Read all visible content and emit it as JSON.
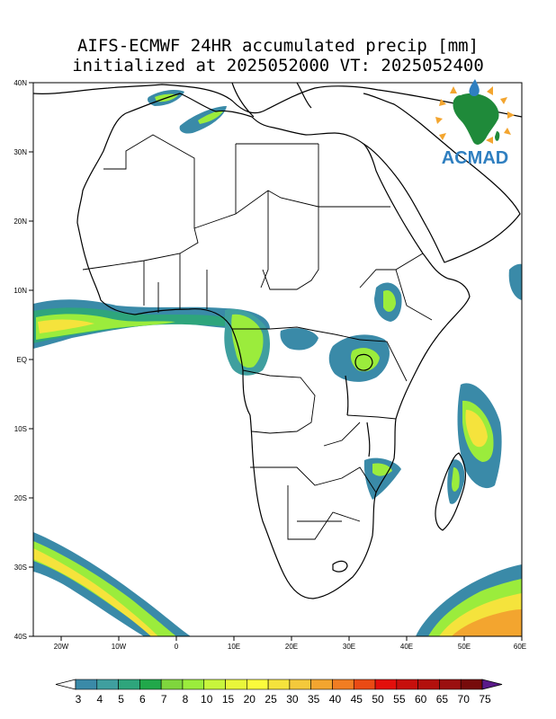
{
  "title": {
    "line1": "AIFS-ECMWF 24HR accumulated precip [mm]",
    "line2": "initialized at 2025052000 VT: 2025052400"
  },
  "logo": {
    "text": "ACMAD"
  },
  "axes": {
    "lat_labels": [
      "40N",
      "30N",
      "20N",
      "10N",
      "EQ",
      "10S",
      "20S",
      "30S",
      "40S"
    ],
    "lon_labels": [
      "20W",
      "10W",
      "0",
      "10E",
      "20E",
      "30E",
      "40E",
      "50E",
      "60E"
    ]
  },
  "colorbar": {
    "levels": [
      "3",
      "4",
      "5",
      "6",
      "7",
      "8",
      "10",
      "15",
      "20",
      "25",
      "30",
      "35",
      "40",
      "45",
      "50",
      "55",
      "60",
      "65",
      "70",
      "75"
    ],
    "colors": [
      "#3a8aa8",
      "#3f9f9f",
      "#2ea57c",
      "#21a84a",
      "#7fd63d",
      "#9bec3c",
      "#c8f53c",
      "#e9f63a",
      "#fbfb3c",
      "#f5e33c",
      "#f4c93b",
      "#f3a52f",
      "#f17d22",
      "#ea4a14",
      "#e30f0b",
      "#c70f0c",
      "#b3100d",
      "#9b0f0f",
      "#770b0b",
      "#560a2a"
    ],
    "over_color": "#5a1a8a",
    "under_color": "#ffffff"
  }
}
